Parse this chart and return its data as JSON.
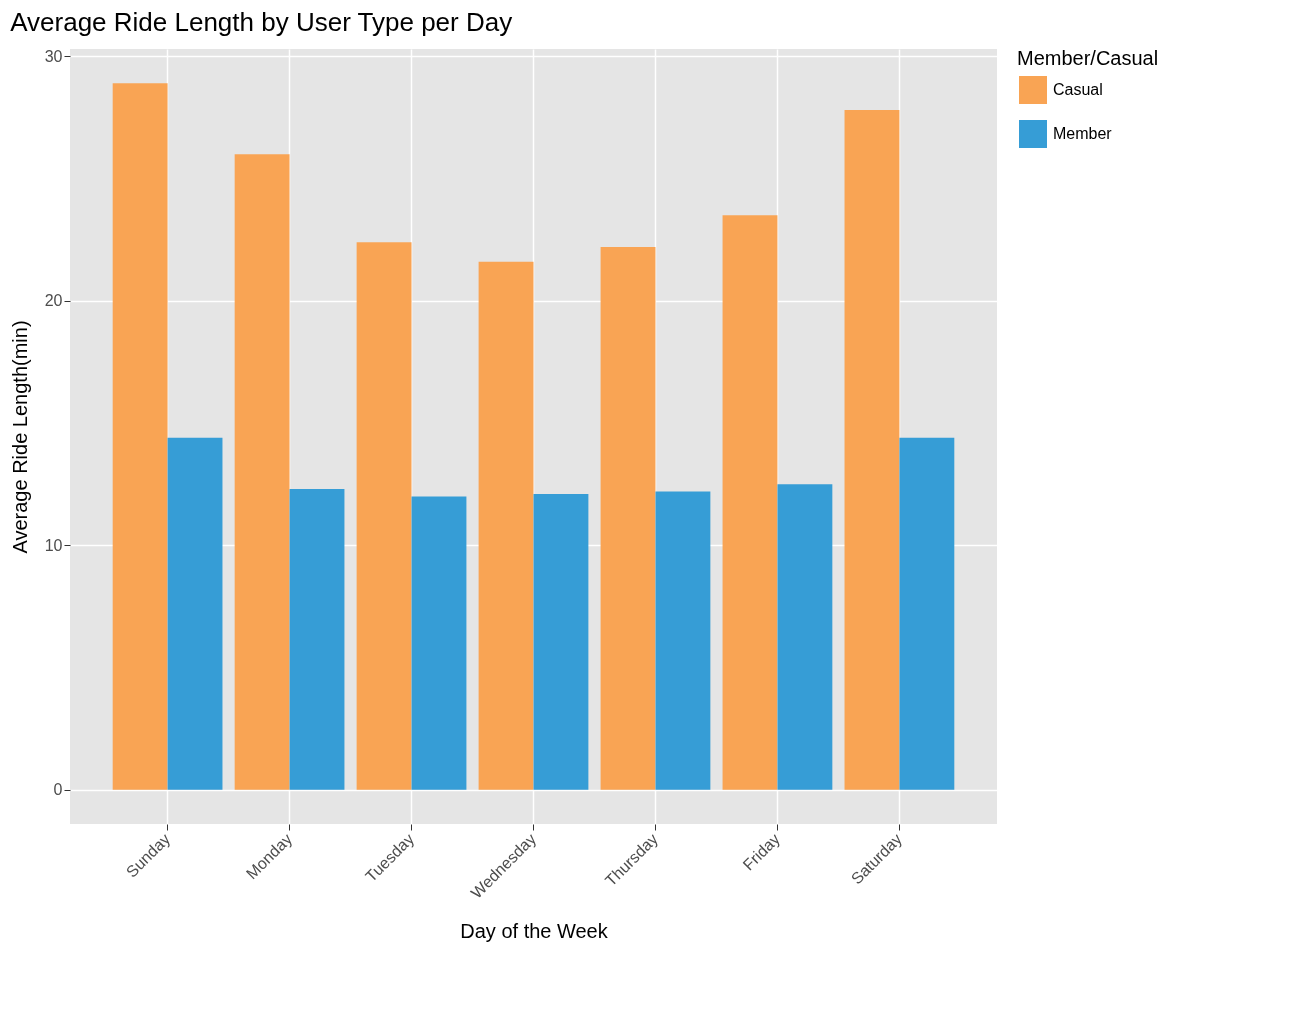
{
  "chart_data": {
    "type": "bar",
    "title": "Average Ride Length by User Type per Day",
    "xlabel": "Day of the Week",
    "ylabel": "Average Ride Length(min)",
    "legend_title": "Member/Casual",
    "categories": [
      "Sunday",
      "Monday",
      "Tuesday",
      "Wednesday",
      "Thursday",
      "Friday",
      "Saturday"
    ],
    "series": [
      {
        "name": "Casual",
        "color": "#f9a454",
        "values": [
          28.9,
          26.0,
          22.4,
          21.6,
          22.2,
          23.5,
          27.8
        ]
      },
      {
        "name": "Member",
        "color": "#369dd6",
        "values": [
          14.4,
          12.3,
          12.0,
          12.1,
          12.2,
          12.5,
          14.4
        ]
      }
    ],
    "ylim": [
      -1.4,
      30.3
    ],
    "yticks": [
      0,
      10,
      20,
      30
    ],
    "grid": true,
    "legend": "right"
  }
}
